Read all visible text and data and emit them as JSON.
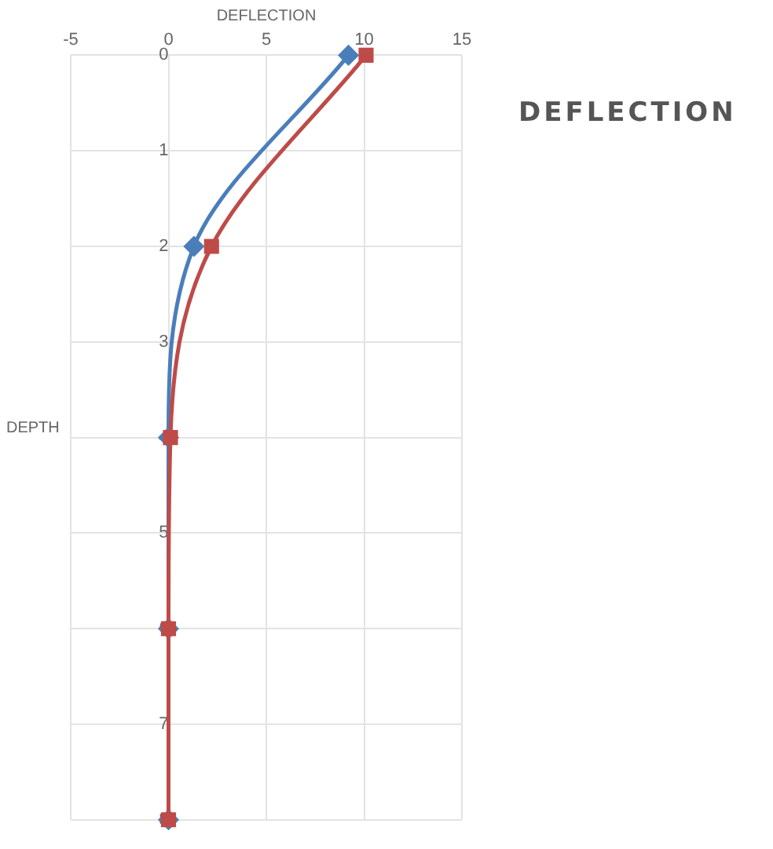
{
  "chart_data": {
    "type": "line",
    "title": "DEFLECTION",
    "xlabel": "DEFLECTION",
    "ylabel": "DEPTH",
    "series": [
      {
        "color": "#4a7ebb",
        "marker": "diamond",
        "x": [
          9.2,
          1.3,
          0,
          0,
          0
        ],
        "values": [
          0,
          2,
          4,
          6,
          8
        ]
      },
      {
        "color": "#be4b48",
        "marker": "square",
        "x": [
          10.1,
          2.2,
          0.1,
          0,
          0
        ],
        "values": [
          0,
          2,
          4,
          6,
          8
        ]
      }
    ],
    "xlim": [
      -5,
      15
    ],
    "xticks": [
      -5,
      0,
      5,
      10,
      15
    ],
    "ylim": [
      8,
      0
    ],
    "yticks": [
      0,
      1,
      2,
      3,
      4,
      5,
      6,
      7,
      8
    ],
    "grid": true,
    "line_style": "solid"
  }
}
